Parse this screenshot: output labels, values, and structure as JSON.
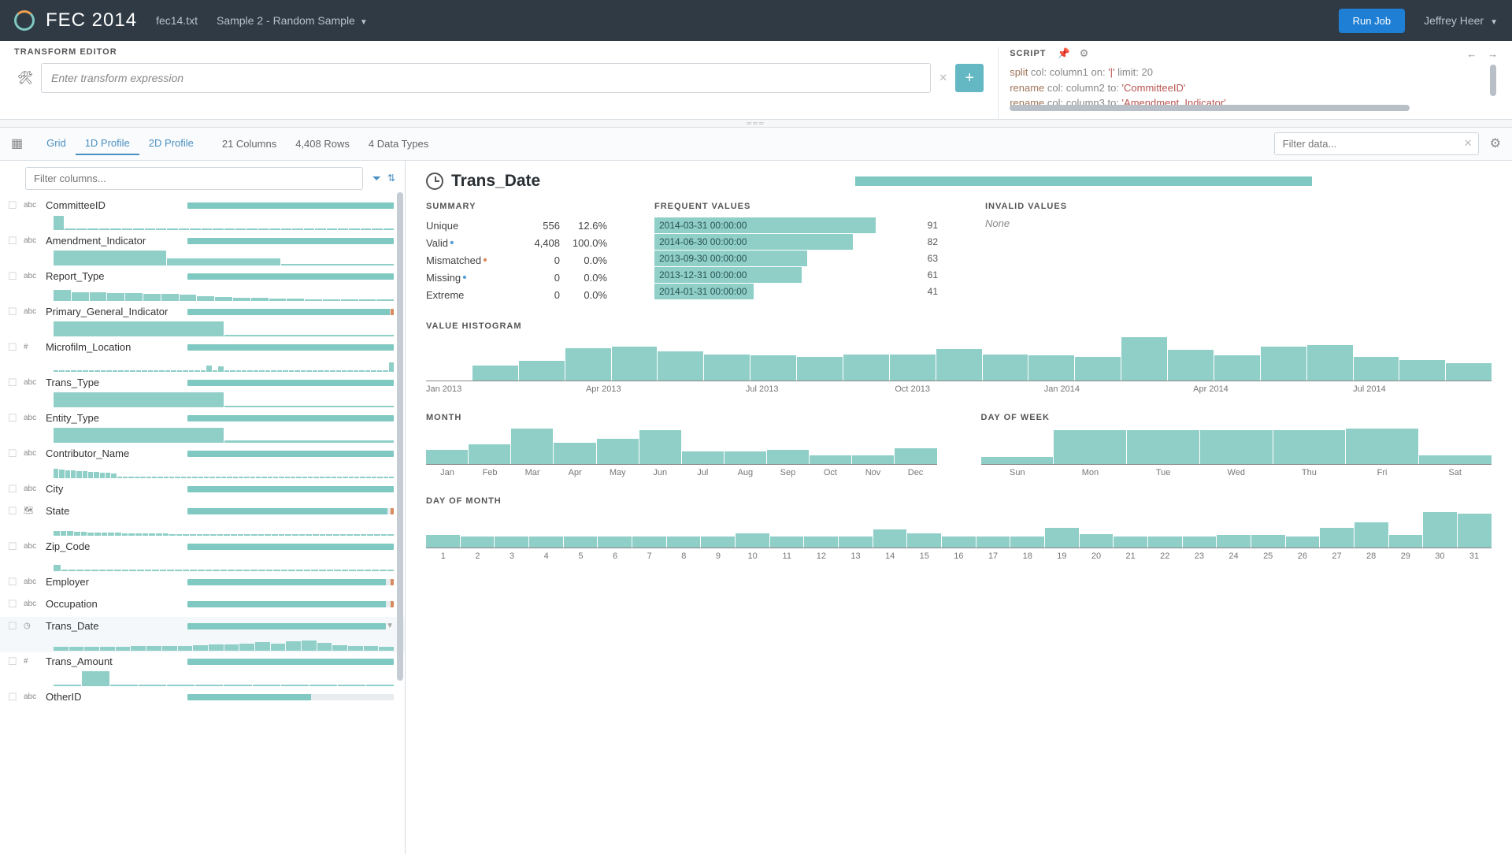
{
  "topbar": {
    "app_title": "FEC 2014",
    "file": "fec14.txt",
    "sample": "Sample 2 - Random Sample",
    "run_btn": "Run Job",
    "user": "Jeffrey Heer"
  },
  "transform": {
    "label": "TRANSFORM EDITOR",
    "placeholder": "Enter transform expression"
  },
  "script": {
    "label": "SCRIPT",
    "lines": [
      {
        "kw": "split",
        "rest": " col: column1 on: '|' limit: 20"
      },
      {
        "kw": "rename",
        "rest": " col: column2 to: 'CommitteeID'"
      },
      {
        "kw": "rename",
        "rest": " col: column3 to: 'Amendment_Indicator'"
      }
    ]
  },
  "toolbar": {
    "tabs": [
      "Grid",
      "1D Profile",
      "2D Profile"
    ],
    "active_tab": 1,
    "meta_cols": "21 Columns",
    "meta_rows": "4,408 Rows",
    "meta_types": "4 Data Types",
    "filter_placeholder": "Filter data..."
  },
  "cols_panel": {
    "filter_placeholder": "Filter columns...",
    "columns": [
      {
        "type": "abc",
        "name": "CommitteeID",
        "quality": 100,
        "spark": [
          90,
          10,
          5,
          5,
          4,
          4,
          3,
          3,
          3,
          3,
          2,
          2,
          2,
          2,
          2,
          2,
          2,
          2,
          2,
          2,
          2,
          2,
          2,
          2,
          2,
          2,
          2,
          2,
          2,
          2
        ]
      },
      {
        "type": "abc",
        "name": "Amendment_Indicator",
        "quality": 100,
        "spark": [
          95,
          45,
          5
        ]
      },
      {
        "type": "abc",
        "name": "Report_Type",
        "quality": 100,
        "spark": [
          70,
          55,
          55,
          50,
          48,
          45,
          42,
          40,
          30,
          25,
          20,
          18,
          15,
          12,
          10,
          8,
          6,
          5,
          4
        ]
      },
      {
        "type": "abc",
        "name": "Primary_General_Indicator",
        "quality": 98,
        "bad": true,
        "spark": [
          95,
          8
        ]
      },
      {
        "type": "#",
        "name": "Microfilm_Location",
        "quality": 100,
        "spark": [
          4,
          3,
          2,
          2,
          2,
          2,
          2,
          2,
          2,
          2,
          2,
          2,
          2,
          2,
          2,
          2,
          2,
          2,
          2,
          2,
          2,
          2,
          2,
          2,
          2,
          2,
          40,
          8,
          35,
          3,
          3,
          3,
          3,
          3,
          3,
          3,
          3,
          3,
          3,
          3,
          3,
          3,
          3,
          3,
          3,
          3,
          3,
          3,
          3,
          3,
          3,
          3,
          3,
          3,
          3,
          3,
          3,
          60
        ]
      },
      {
        "type": "abc",
        "name": "Trans_Type",
        "quality": 100,
        "spark": [
          95,
          10
        ]
      },
      {
        "type": "abc",
        "name": "Entity_Type",
        "quality": 100,
        "spark": [
          95,
          12
        ]
      },
      {
        "type": "abc",
        "name": "Contributor_Name",
        "quality": 100,
        "spark": [
          60,
          55,
          50,
          48,
          45,
          42,
          40,
          38,
          35,
          32,
          30,
          8,
          8,
          8,
          8,
          8,
          8,
          8,
          8,
          8,
          8,
          8,
          8,
          8,
          8,
          8,
          8,
          8,
          8,
          8,
          8,
          8,
          8,
          8,
          8,
          8,
          8,
          8,
          8,
          8,
          8,
          8,
          8,
          8,
          8,
          8,
          8,
          8,
          8,
          8,
          8,
          8,
          8,
          8,
          8,
          8,
          8,
          8,
          8
        ]
      },
      {
        "type": "abc",
        "name": "City",
        "quality": 100,
        "spark": []
      },
      {
        "type": "geo",
        "name": "State",
        "quality": 97,
        "bad": true,
        "spark": [
          30,
          28,
          26,
          24,
          22,
          20,
          19,
          18,
          17,
          16,
          15,
          14,
          13,
          12,
          12,
          11,
          11,
          10,
          10,
          10,
          9,
          9,
          9,
          8,
          8,
          8,
          8,
          7,
          7,
          7,
          7,
          6,
          6,
          6,
          6,
          6,
          5,
          5,
          5,
          5,
          5,
          5,
          4,
          4,
          4,
          4,
          4,
          4,
          4,
          4
        ]
      },
      {
        "type": "abc",
        "name": "Zip_Code",
        "quality": 100,
        "spark": [
          40,
          8,
          8,
          8,
          8,
          8,
          8,
          8,
          8,
          8,
          8,
          8,
          8,
          8,
          8,
          8,
          8,
          8,
          8,
          8,
          8,
          8,
          8,
          8,
          8,
          8,
          8,
          8,
          8,
          8,
          8,
          8,
          8,
          8,
          8,
          8,
          8,
          8,
          8,
          8,
          8,
          8,
          8,
          8,
          8
        ]
      },
      {
        "type": "abc",
        "name": "Employer",
        "quality": 96,
        "bad": true,
        "spark": []
      },
      {
        "type": "abc",
        "name": "Occupation",
        "quality": 96,
        "bad": true,
        "spark": []
      },
      {
        "type": "clk",
        "name": "Trans_Date",
        "quality": 100,
        "selected": true,
        "dd": true,
        "spark": [
          25,
          25,
          25,
          25,
          25,
          28,
          30,
          30,
          30,
          35,
          38,
          40,
          45,
          55,
          45,
          60,
          65,
          50,
          35,
          30,
          28,
          25
        ]
      },
      {
        "type": "#",
        "name": "Trans_Amount",
        "quality": 100,
        "spark": [
          5,
          95,
          8,
          4,
          3,
          3,
          2,
          2,
          2,
          2,
          2,
          2
        ]
      },
      {
        "type": "abc",
        "name": "OtherID",
        "quality": 60,
        "spark": []
      }
    ]
  },
  "detail": {
    "title": "Trans_Date",
    "summary": {
      "label": "SUMMARY",
      "rows": [
        {
          "k": "Unique",
          "v1": "556",
          "v2": "12.6%"
        },
        {
          "k": "Valid",
          "dot": "blue",
          "v1": "4,408",
          "v2": "100.0%"
        },
        {
          "k": "Mismatched",
          "dot": "orange",
          "v1": "0",
          "v2": "0.0%"
        },
        {
          "k": "Missing",
          "dot": "blue",
          "v1": "0",
          "v2": "0.0%"
        },
        {
          "k": "Extreme",
          "v1": "0",
          "v2": "0.0%"
        }
      ]
    },
    "frequent": {
      "label": "FREQUENT VALUES",
      "rows": [
        {
          "label": "2014-03-31 00:00:00",
          "pct": 78,
          "val": "91"
        },
        {
          "label": "2014-06-30 00:00:00",
          "pct": 70,
          "val": "82"
        },
        {
          "label": "2013-09-30 00:00:00",
          "pct": 54,
          "val": "63"
        },
        {
          "label": "2013-12-31 00:00:00",
          "pct": 52,
          "val": "61"
        },
        {
          "label": "2014-01-31 00:00:00",
          "pct": 35,
          "val": "41"
        }
      ]
    },
    "invalid": {
      "label": "INVALID VALUES",
      "text": "None"
    },
    "histogram": {
      "label": "VALUE HISTOGRAM",
      "bars": [
        0,
        35,
        45,
        75,
        78,
        68,
        60,
        58,
        55,
        60,
        60,
        72,
        60,
        58,
        55,
        100,
        70,
        58,
        78,
        82,
        55,
        48,
        40
      ],
      "axis": [
        {
          "pos": 0,
          "lbl": "Jan 2013"
        },
        {
          "pos": 15,
          "lbl": "Apr 2013"
        },
        {
          "pos": 30,
          "lbl": "Jul 2013"
        },
        {
          "pos": 44,
          "lbl": "Oct 2013"
        },
        {
          "pos": 58,
          "lbl": "Jan 2014"
        },
        {
          "pos": 72,
          "lbl": "Apr 2014"
        },
        {
          "pos": 87,
          "lbl": "Jul 2014"
        }
      ]
    },
    "month": {
      "label": "MONTH",
      "bars": [
        40,
        55,
        100,
        60,
        70,
        95,
        35,
        35,
        40,
        25,
        25,
        45
      ],
      "labels": [
        "Jan",
        "Feb",
        "Mar",
        "Apr",
        "May",
        "Jun",
        "Jul",
        "Aug",
        "Sep",
        "Oct",
        "Nov",
        "Dec"
      ]
    },
    "dow": {
      "label": "DAY OF WEEK",
      "bars": [
        20,
        95,
        95,
        95,
        95,
        100,
        25
      ],
      "labels": [
        "Sun",
        "Mon",
        "Tue",
        "Wed",
        "Thu",
        "Fri",
        "Sat"
      ]
    },
    "dom": {
      "label": "DAY OF MONTH",
      "bars": [
        35,
        30,
        30,
        30,
        30,
        32,
        32,
        30,
        30,
        40,
        32,
        32,
        32,
        50,
        40,
        32,
        32,
        32,
        55,
        38,
        32,
        32,
        32,
        35,
        35,
        32,
        55,
        70,
        35,
        100,
        95
      ],
      "labels": [
        "1",
        "2",
        "3",
        "4",
        "5",
        "6",
        "7",
        "8",
        "9",
        "10",
        "11",
        "12",
        "13",
        "14",
        "15",
        "16",
        "17",
        "18",
        "19",
        "20",
        "21",
        "22",
        "23",
        "24",
        "25",
        "26",
        "27",
        "28",
        "29",
        "30",
        "31"
      ]
    }
  },
  "colors": {
    "teal": "#8fcfc8",
    "teal_dark": "#7fc9c2"
  }
}
